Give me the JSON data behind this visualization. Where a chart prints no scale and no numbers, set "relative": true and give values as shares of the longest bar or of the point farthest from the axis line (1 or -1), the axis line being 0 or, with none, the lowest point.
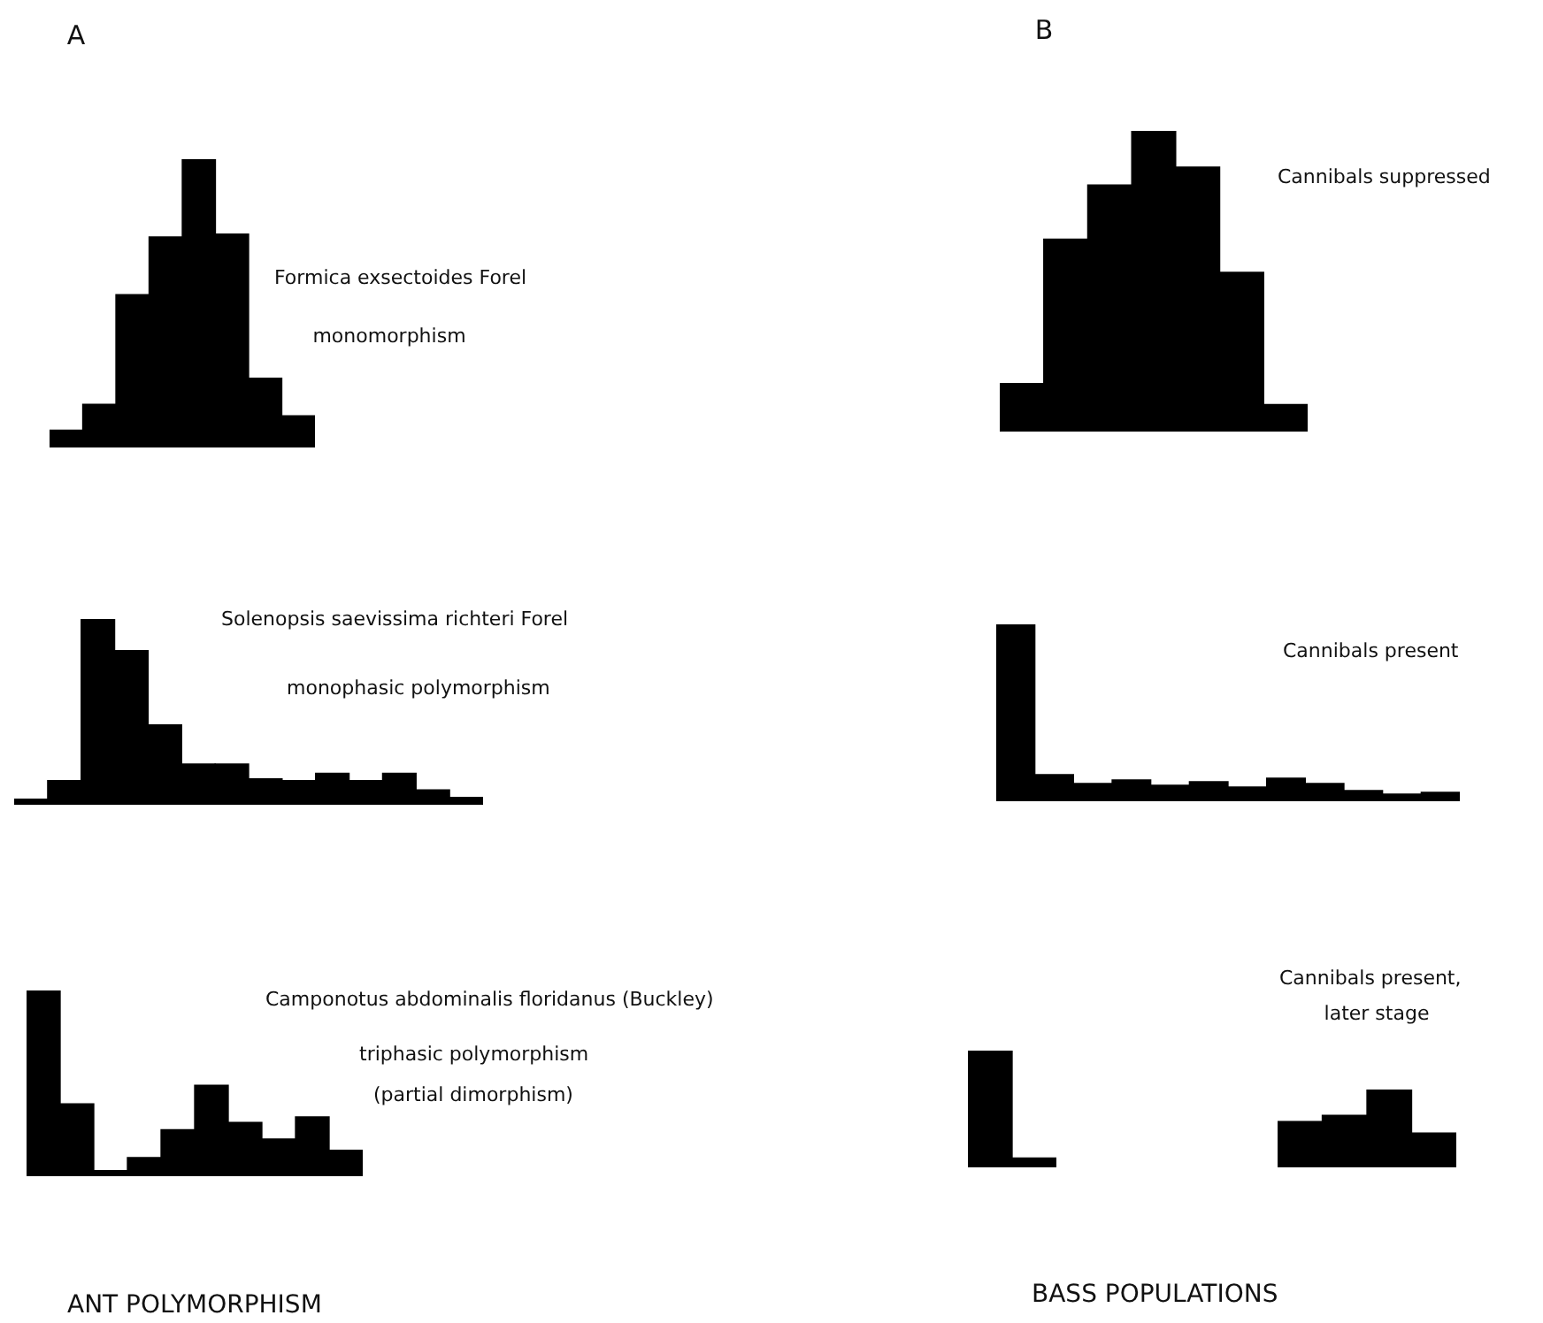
{
  "chart_data": [
    {
      "type": "bar",
      "title": "A",
      "categories": [
        null,
        null,
        null,
        null,
        null,
        null,
        null,
        null
      ],
      "values": [
        0.06,
        0.15,
        0.53,
        0.73,
        1,
        0.74,
        0.24,
        0.11
      ],
      "color": "#000000",
      "relative": true,
      "annotations": [
        "Formica exsectoides Forel",
        "monomorphism"
      ]
    },
    {
      "type": "bar",
      "title": "B",
      "categories": [
        null,
        null,
        null,
        null,
        null,
        null,
        null
      ],
      "values": [
        0.16,
        0.64,
        0.82,
        1,
        0.88,
        0.53,
        0.09
      ],
      "color": "#000000",
      "relative": true,
      "annotations": [
        "Cannibals suppressed"
      ]
    },
    {
      "type": "bar",
      "categories": [
        null,
        null,
        null,
        null,
        null,
        null,
        null,
        null,
        null,
        null,
        null,
        null,
        null,
        null
      ],
      "values": [
        0.03,
        0.13,
        1,
        0.83,
        0.43,
        0.22,
        0.22,
        0.14,
        0.13,
        0.17,
        0.13,
        0.17,
        0.08,
        0.04
      ],
      "color": "#000000",
      "relative": true,
      "annotations": [
        "Solenopsis saevissima richteri Forel",
        "monophasic polymorphism"
      ]
    },
    {
      "type": "bar",
      "categories": [
        null,
        null,
        null,
        null,
        null,
        null,
        null,
        null,
        null,
        null,
        null,
        null
      ],
      "values": [
        1,
        0.15,
        0.1,
        0.12,
        0.09,
        0.11,
        0.08,
        0.13,
        0.1,
        0.06,
        0.04,
        0.05
      ],
      "color": "#000000",
      "relative": true,
      "annotations": [
        "Cannibals present"
      ]
    },
    {
      "type": "bar",
      "categories": [
        null,
        null,
        null,
        null,
        null,
        null,
        null,
        null,
        null,
        null
      ],
      "values": [
        1,
        0.39,
        0.03,
        0.1,
        0.25,
        0.49,
        0.29,
        0.2,
        0.32,
        0.14
      ],
      "color": "#000000",
      "relative": true,
      "annotations": [
        "Camponotus abdominalis floridanus (Buckley)",
        "triphasic polymorphism",
        "(partial dimorphism)",
        "ANT POLYMORPHISM"
      ]
    },
    {
      "type": "bar",
      "categories": [
        null,
        null
      ],
      "values": [
        1,
        0.08
      ],
      "color": "#000000",
      "relative": true,
      "annotations": [
        "BASS POPULATIONS"
      ]
    },
    {
      "type": "bar",
      "categories": [
        null,
        null,
        null,
        null
      ],
      "values": [
        0.59,
        0.67,
        1,
        0.44
      ],
      "color": "#000000",
      "relative": true,
      "annotations": [
        "Cannibals present,",
        "later stage"
      ]
    }
  ]
}
